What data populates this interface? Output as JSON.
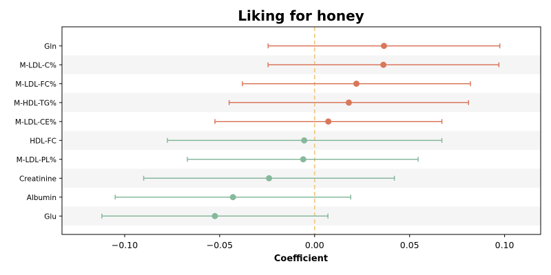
{
  "chart_data": {
    "type": "forest",
    "title": "Liking for honey",
    "xlabel": "Coefficient",
    "ylabel": "",
    "xlim": [
      -0.133,
      0.119
    ],
    "xticks": [
      -0.1,
      -0.05,
      0.0,
      0.05,
      0.1
    ],
    "xtick_labels": [
      "−0.10",
      "−0.05",
      "0.00",
      "0.05",
      "0.10"
    ],
    "reference_line": 0.0,
    "reference_line_color": "#f2c987",
    "alternating_row_shading": true,
    "positive_color": "#d9775b",
    "negative_color": "#86b89c",
    "rows": [
      {
        "label": "Gln",
        "coef": 0.0365,
        "lower": -0.0245,
        "upper": 0.0975
      },
      {
        "label": "M-LDL-C%",
        "coef": 0.0362,
        "lower": -0.0245,
        "upper": 0.097
      },
      {
        "label": "M-LDL-FC%",
        "coef": 0.022,
        "lower": -0.038,
        "upper": 0.082
      },
      {
        "label": "M-HDL-TG%",
        "coef": 0.018,
        "lower": -0.045,
        "upper": 0.081
      },
      {
        "label": "M-LDL-CE%",
        "coef": 0.0072,
        "lower": -0.0525,
        "upper": 0.067
      },
      {
        "label": "HDL-FC",
        "coef": -0.0055,
        "lower": -0.0775,
        "upper": 0.067
      },
      {
        "label": "M-LDL-PL%",
        "coef": -0.006,
        "lower": -0.067,
        "upper": 0.0545
      },
      {
        "label": "Creatinine",
        "coef": -0.024,
        "lower": -0.09,
        "upper": 0.042
      },
      {
        "label": "Albumin",
        "coef": -0.043,
        "lower": -0.105,
        "upper": 0.019
      },
      {
        "label": "Glu",
        "coef": -0.0525,
        "lower": -0.112,
        "upper": 0.007
      }
    ]
  }
}
